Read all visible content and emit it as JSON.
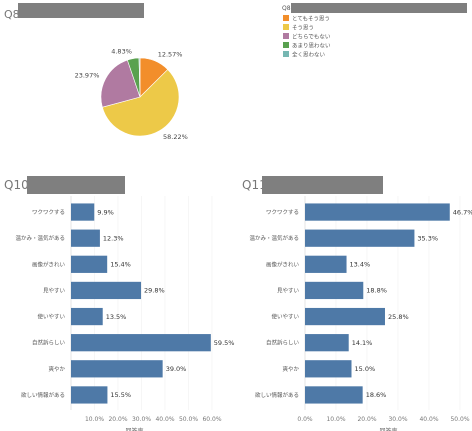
{
  "sections": {
    "q8_title": "Q8",
    "q10_title": "Q10.",
    "q11_title": "Q11"
  },
  "legend": {
    "title": "Q8",
    "items": [
      {
        "label": "とてもそう思う",
        "color": "#f28e2b"
      },
      {
        "label": "そう思う",
        "color": "#edc948"
      },
      {
        "label": "どちらでもない",
        "color": "#b07aa1"
      },
      {
        "label": "あまり思わない",
        "color": "#59a14f"
      },
      {
        "label": "全く思わない",
        "color": "#76b7b2"
      }
    ]
  },
  "chart_data": [
    {
      "type": "pie",
      "id": "q8",
      "title": "Q8",
      "slices": [
        {
          "label": "とてもそう思う",
          "value": 12.57,
          "display": "12.57%",
          "color": "#f28e2b"
        },
        {
          "label": "そう思う",
          "value": 58.22,
          "display": "58.22%",
          "color": "#edc948"
        },
        {
          "label": "どちらでもない",
          "value": 23.97,
          "display": "23.97%",
          "color": "#b07aa1"
        },
        {
          "label": "あまり思わない",
          "value": 4.83,
          "display": "4.83%",
          "color": "#59a14f"
        },
        {
          "label": "全く思わない",
          "value": 0.41,
          "display": "",
          "color": "#76b7b2"
        }
      ]
    },
    {
      "type": "bar",
      "orientation": "horizontal",
      "id": "q10",
      "title": "Q10.",
      "categories": [
        "ワクワクする",
        "温かみ・温気がある",
        "画像がきれい",
        "見やすい",
        "使いやすい",
        "自然訴らしい",
        "爽やか",
        "欲しい情報がある"
      ],
      "values": [
        9.9,
        12.3,
        15.4,
        29.8,
        13.5,
        59.5,
        39.0,
        15.5
      ],
      "value_labels": [
        "9.9%",
        "12.3%",
        "15.4%",
        "29.8%",
        "13.5%",
        "59.5%",
        "39.0%",
        "15.5%"
      ],
      "xlim": [
        0,
        60
      ],
      "xticks": [
        "10.0%",
        "20.0%",
        "30.0%",
        "40.0%",
        "50.0%",
        "60.0%"
      ],
      "xlabel": "回答率",
      "color": "#4e79a7"
    },
    {
      "type": "bar",
      "orientation": "horizontal",
      "id": "q11",
      "title": "Q11",
      "categories": [
        "ワクワクする",
        "温かみ・温気がある",
        "画像がきれい",
        "見やすい",
        "使いやすい",
        "自然訴らしい",
        "爽やか",
        "欲しい情報がある"
      ],
      "values": [
        46.7,
        35.3,
        13.4,
        18.8,
        25.8,
        14.1,
        15.0,
        18.6
      ],
      "value_labels": [
        "46.7%",
        "35.3%",
        "13.4%",
        "18.8%",
        "25.8%",
        "14.1%",
        "15.0%",
        "18.6%"
      ],
      "xlim": [
        0,
        50
      ],
      "xticks": [
        "0.0%",
        "10.0%",
        "20.0%",
        "30.0%",
        "40.0%",
        "50.0%"
      ],
      "xlabel": "回答率",
      "color": "#4e79a7"
    }
  ]
}
